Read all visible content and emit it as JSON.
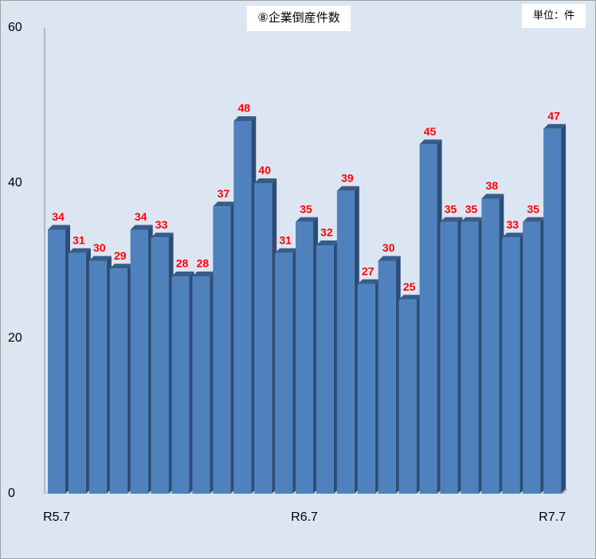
{
  "chart_data": {
    "type": "bar",
    "title": "⑧企業倒産件数",
    "annotation": "単位：件",
    "categories": [
      "R5.7",
      null,
      null,
      null,
      null,
      null,
      null,
      null,
      null,
      null,
      null,
      null,
      "R6.7",
      null,
      null,
      null,
      null,
      null,
      null,
      null,
      null,
      null,
      null,
      null,
      "R7.7"
    ],
    "values": [
      34,
      31,
      30,
      29,
      34,
      33,
      28,
      28,
      37,
      48,
      40,
      31,
      35,
      32,
      39,
      27,
      30,
      25,
      45,
      35,
      35,
      38,
      33,
      35,
      47
    ],
    "color": "#4f81bd",
    "label_color": "#ff0000",
    "ylim": [
      0,
      60
    ],
    "yticks": [
      0,
      20,
      40,
      60
    ]
  }
}
